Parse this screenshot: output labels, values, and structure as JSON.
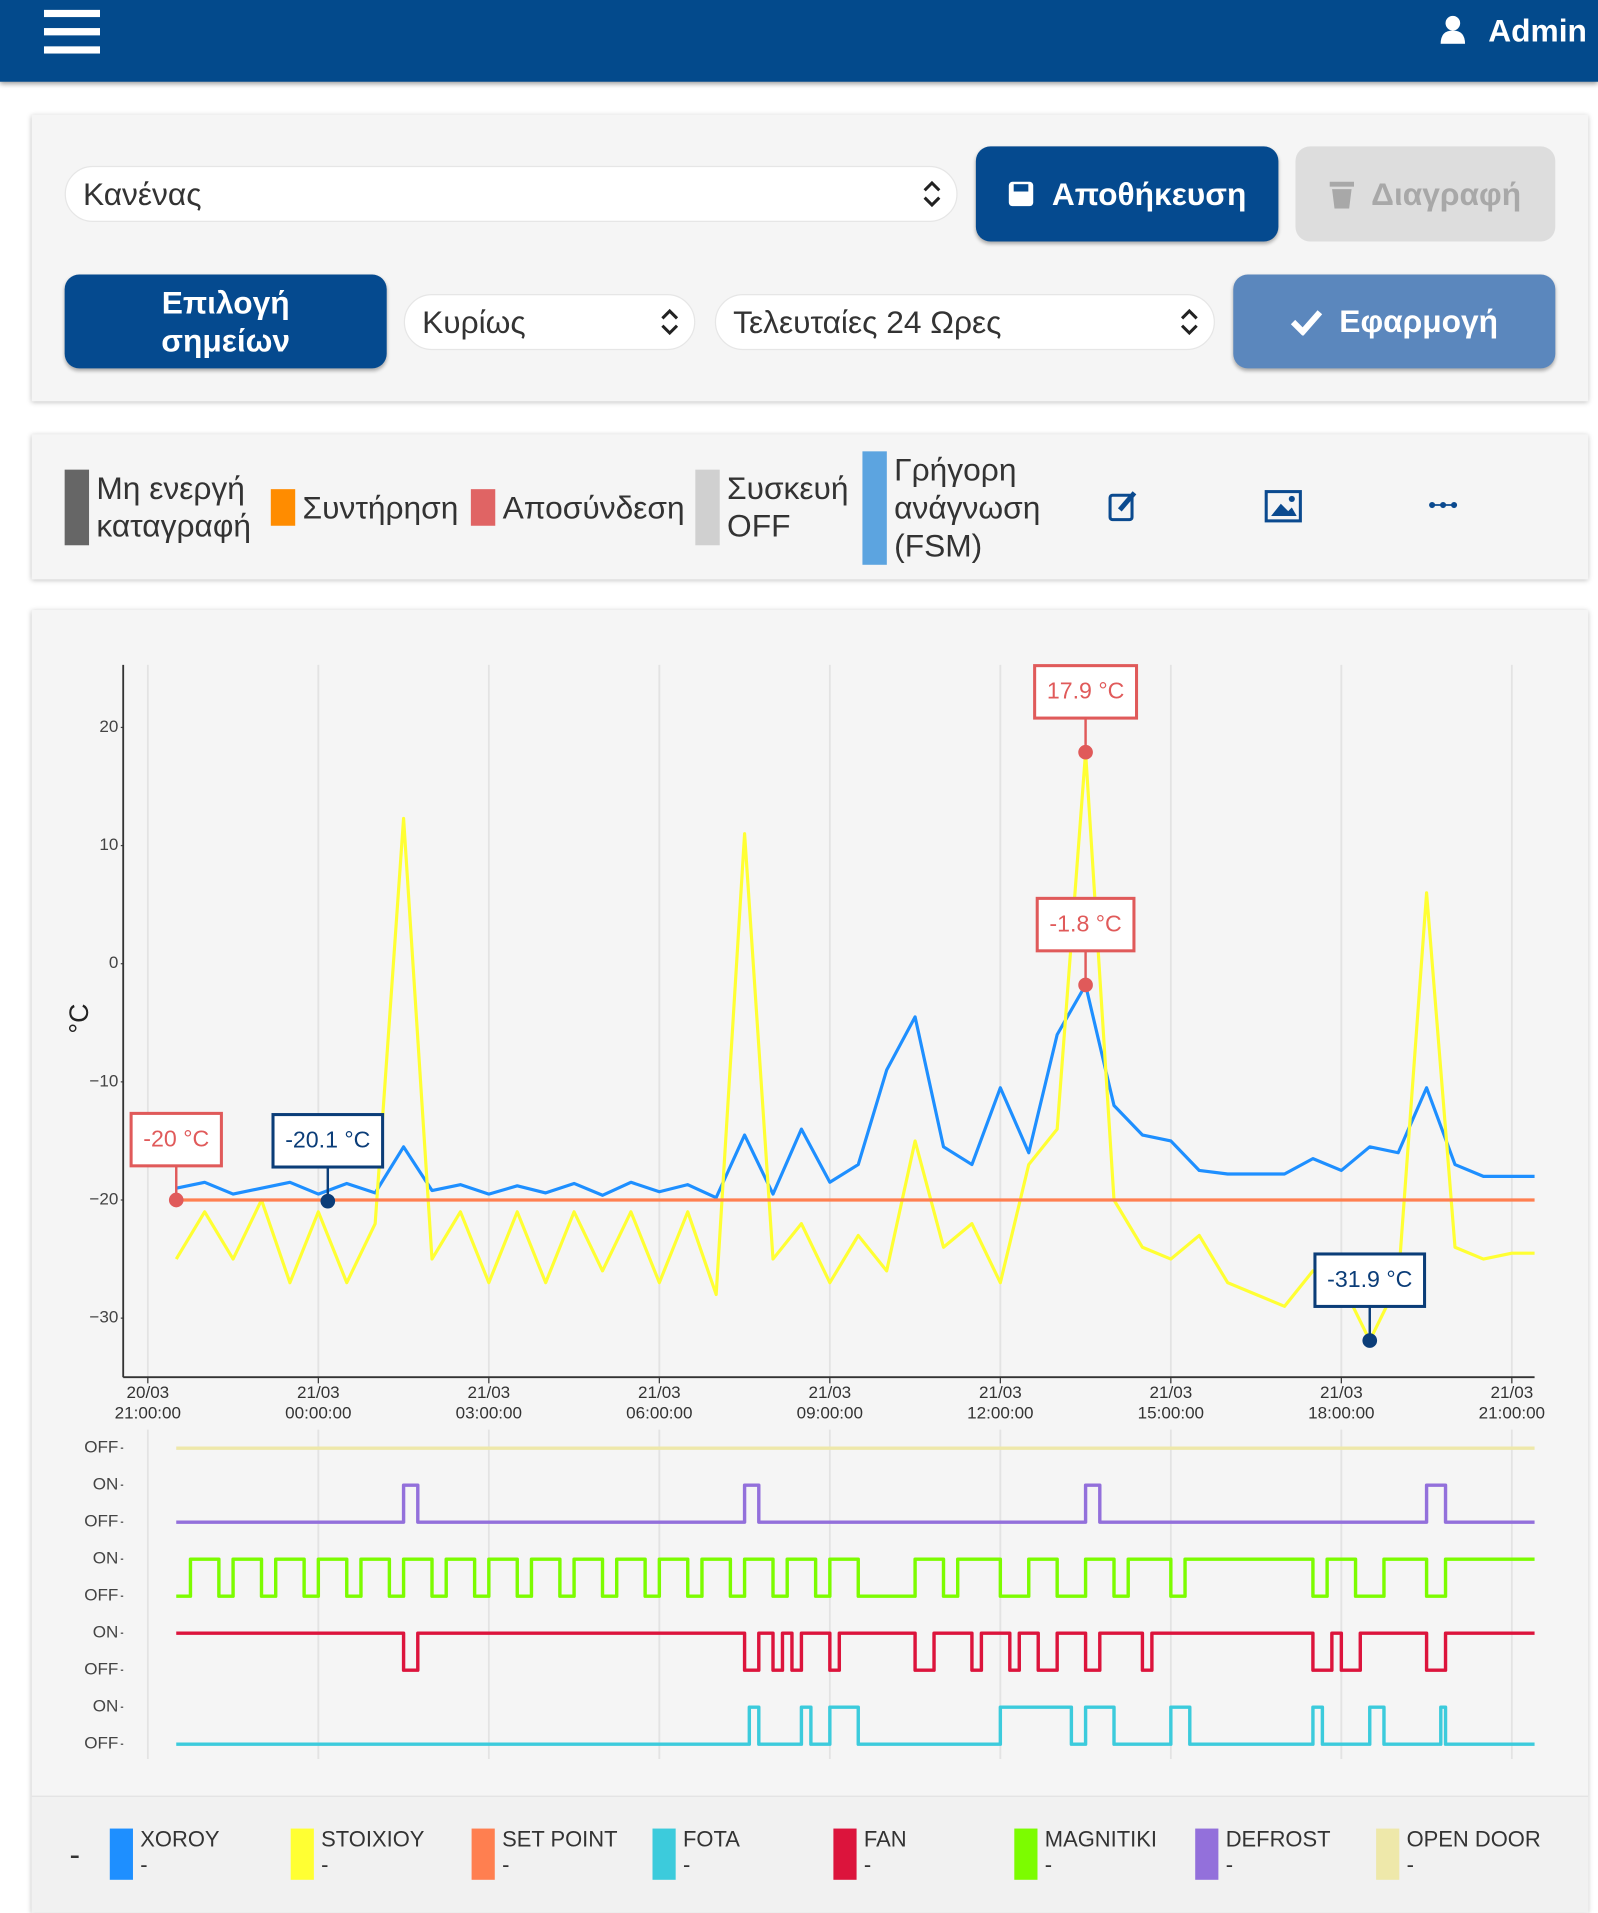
{
  "header": {
    "user": "Admin"
  },
  "toolbar": {
    "preset": "Κανένας",
    "save": "Αποθήκευση",
    "delete": "Διαγραφή",
    "points": "Επιλογή σημείων",
    "group": "Κυρίως",
    "range": "Τελευταίες 24 Ωρες",
    "apply": "Εφαρμογή"
  },
  "status_legend": [
    {
      "label": "Μη ενεργή καταγραφή",
      "color": "#666666"
    },
    {
      "label": "Συντήρηση",
      "color": "#ff8c00"
    },
    {
      "label": "Αποσύνδεση",
      "color": "#e06464"
    },
    {
      "label": "Συσκευή OFF",
      "color": "#d0d0d0"
    },
    {
      "label": "Γρήγορη ανάγνωση (FSM)",
      "color": "#5ca4e0"
    }
  ],
  "legend_label": "-",
  "chart_data": [
    {
      "type": "line",
      "y_label": "°C",
      "x": [
        "20/03 21:30:00",
        "20/03 22:00:00",
        "20/03 22:30:00",
        "20/03 23:00:00",
        "20/03 23:30:00",
        "21/03 00:00:00",
        "21/03 00:30:00",
        "21/03 01:00:00",
        "21/03 01:30:00",
        "21/03 02:00:00",
        "21/03 02:30:00",
        "21/03 03:00:00",
        "21/03 03:30:00",
        "21/03 04:00:00",
        "21/03 04:30:00",
        "21/03 05:00:00",
        "21/03 05:30:00",
        "21/03 06:00:00",
        "21/03 06:30:00",
        "21/03 07:00:00",
        "21/03 07:30:00",
        "21/03 08:00:00",
        "21/03 08:30:00",
        "21/03 09:00:00",
        "21/03 09:30:00",
        "21/03 10:00:00",
        "21/03 10:30:00",
        "21/03 11:00:00",
        "21/03 11:30:00",
        "21/03 12:00:00",
        "21/03 12:30:00",
        "21/03 13:00:00",
        "21/03 13:30:00",
        "21/03 14:00:00",
        "21/03 14:30:00",
        "21/03 15:00:00",
        "21/03 15:30:00",
        "21/03 16:00:00",
        "21/03 16:30:00",
        "21/03 17:00:00",
        "21/03 17:30:00",
        "21/03 18:00:00",
        "21/03 18:30:00",
        "21/03 19:00:00",
        "21/03 19:30:00",
        "21/03 20:00:00",
        "21/03 20:30:00",
        "21/03 21:00:00",
        "21/03 21:24:00"
      ],
      "series": [
        {
          "name": "XOROY",
          "color": "#1e8fff",
          "current": "-",
          "values": [
            -19,
            -18.5,
            -19.5,
            -19,
            -18.5,
            -19.5,
            -18.6,
            -19.4,
            -15.5,
            -19.2,
            -18.7,
            -19.5,
            -18.8,
            -19.4,
            -18.6,
            -19.6,
            -18.5,
            -19.3,
            -18.7,
            -19.8,
            -14.5,
            -19.5,
            -14,
            -18.5,
            -17,
            -9,
            -4.5,
            -15.5,
            -17,
            -10.5,
            -16,
            -6,
            -1.8,
            -12,
            -14.5,
            -15,
            -17.5,
            -17.8,
            -17.8,
            -17.8,
            -16.5,
            -17.5,
            -15.5,
            -16,
            -10.5,
            -17,
            -18,
            -18,
            -18
          ]
        },
        {
          "name": "STOIXIOY",
          "color": "#ffff33",
          "current": "-",
          "values": [
            -25,
            -21,
            -25,
            -20,
            -27,
            -21,
            -27,
            -22,
            12.3,
            -25,
            -21,
            -27,
            -21,
            -27,
            -21,
            -26,
            -21,
            -27,
            -21,
            -28,
            11,
            -25,
            -22,
            -27,
            -23,
            -26,
            -15,
            -24,
            -22,
            -27,
            -17,
            -14,
            17.9,
            -20,
            -24,
            -25,
            -23,
            -27,
            -28,
            -29,
            -26,
            -27,
            -31.9,
            -27,
            6,
            -24,
            -25,
            -24.5,
            -24.5
          ]
        },
        {
          "name": "SET POINT",
          "color": "#ff7f50",
          "current": "-",
          "x": [
            "20/03 21:30:00",
            "21/03 21:24:00"
          ],
          "values": [
            -20,
            -20
          ]
        }
      ],
      "annotations": [
        {
          "x": "20/03 21:30:00",
          "value": -20,
          "label": "-20 °C",
          "color": "#e05a5a"
        },
        {
          "x": "21/03 00:10:00",
          "value": -20.1,
          "label": "-20.1 °C",
          "color": "#0b3d78"
        },
        {
          "x": "21/03 13:30:00",
          "value": 17.9,
          "label": "17.9 °C",
          "color": "#e05a5a"
        },
        {
          "x": "21/03 13:30:00",
          "value": -1.8,
          "label": "-1.8 °C",
          "color": "#e05a5a"
        },
        {
          "x": "21/03 18:30:00",
          "value": -31.9,
          "label": "-31.9 °C",
          "color": "#0b3d78"
        }
      ],
      "xlim": [
        "20/03 20:34:00",
        "21/03 21:24:00"
      ],
      "xticks": [
        "20/03 21:00:00",
        "21/03 00:00:00",
        "21/03 03:00:00",
        "21/03 06:00:00",
        "21/03 09:00:00",
        "21/03 12:00:00",
        "21/03 15:00:00",
        "21/03 18:00:00",
        "21/03 21:00:00"
      ],
      "ylim": [
        -35,
        25.3
      ],
      "yticks": [
        20,
        10,
        0,
        {
          "value": -10,
          "label": "−10"
        },
        {
          "value": -20,
          "label": "−20"
        },
        {
          "value": -30,
          "label": "−30"
        }
      ],
      "grid": "x"
    },
    {
      "type": "step",
      "xlim": [
        "20/03 20:34:00",
        "21/03 21:24:00"
      ],
      "xticks": [
        "20/03 21:00:00",
        "21/03 00:00:00",
        "21/03 03:00:00",
        "21/03 06:00:00",
        "21/03 09:00:00",
        "21/03 12:00:00",
        "21/03 15:00:00",
        "21/03 18:00:00",
        "21/03 21:00:00"
      ],
      "ylim": [
        -0.4,
        8.5
      ],
      "yticks": [
        {
          "value": 8,
          "label": "OFF"
        },
        {
          "value": 7,
          "label": "ON"
        },
        {
          "value": 6,
          "label": "OFF"
        },
        {
          "value": 5,
          "label": "ON"
        },
        {
          "value": 4,
          "label": "OFF"
        },
        {
          "value": 3,
          "label": "ON"
        },
        {
          "value": 2,
          "label": "OFF"
        },
        {
          "value": 1,
          "label": "ON"
        },
        {
          "value": 0,
          "label": "OFF"
        }
      ],
      "grid": "x",
      "series": [
        {
          "name": "FOTA",
          "color": "#3ccbdc",
          "current": "-",
          "x": [
            "20/03 21:30:00",
            "21/03 07:35:00",
            "21/03 07:45:00",
            "21/03 08:30:00",
            "21/03 08:40:00",
            "21/03 09:00:00",
            "21/03 09:30:00",
            "21/03 12:00:00",
            "21/03 13:15:00",
            "21/03 13:30:00",
            "21/03 14:00:00",
            "21/03 15:00:00",
            "21/03 15:20:00",
            "21/03 17:30:00",
            "21/03 17:40:00",
            "21/03 18:30:00",
            "21/03 18:45:00",
            "21/03 19:45:00",
            "21/03 19:50:00",
            "21/03 21:24:00"
          ],
          "values": [
            0,
            1,
            0,
            1,
            0,
            1,
            0,
            1,
            0,
            1,
            0,
            1,
            0,
            1,
            0,
            1,
            0,
            1,
            0,
            0
          ]
        },
        {
          "name": "FAN",
          "color": "#dc143c",
          "current": "-",
          "x": [
            "20/03 21:30:00",
            "21/03 01:30:00",
            "21/03 01:45:00",
            "21/03 07:30:00",
            "21/03 07:45:00",
            "21/03 08:00:00",
            "21/03 08:10:00",
            "21/03 08:20:00",
            "21/03 08:30:00",
            "21/03 09:00:00",
            "21/03 09:10:00",
            "21/03 10:30:00",
            "21/03 10:50:00",
            "21/03 11:30:00",
            "21/03 11:40:00",
            "21/03 12:10:00",
            "21/03 12:20:00",
            "21/03 12:40:00",
            "21/03 13:00:00",
            "21/03 13:30:00",
            "21/03 13:45:00",
            "21/03 14:30:00",
            "21/03 14:40:00",
            "21/03 17:30:00",
            "21/03 17:50:00",
            "21/03 18:00:00",
            "21/03 18:20:00",
            "21/03 19:30:00",
            "21/03 19:50:00",
            "21/03 21:24:00"
          ],
          "values": [
            3,
            2,
            3,
            2,
            3,
            2,
            3,
            2,
            3,
            2,
            3,
            2,
            3,
            2,
            3,
            2,
            3,
            2,
            3,
            2,
            3,
            2,
            3,
            2,
            3,
            2,
            3,
            2,
            3,
            3
          ]
        },
        {
          "name": "MAGNITIKI",
          "color": "#7cfc00",
          "current": "-",
          "x": [
            "20/03 21:30:00",
            "20/03 21:45:00",
            "20/03 22:15:00",
            "20/03 22:30:00",
            "20/03 23:00:00",
            "20/03 23:15:00",
            "20/03 23:45:00",
            "21/03 00:00:00",
            "21/03 00:30:00",
            "21/03 00:45:00",
            "21/03 01:15:00",
            "21/03 01:30:00",
            "21/03 02:00:00",
            "21/03 02:15:00",
            "21/03 02:45:00",
            "21/03 03:00:00",
            "21/03 03:30:00",
            "21/03 03:45:00",
            "21/03 04:15:00",
            "21/03 04:30:00",
            "21/03 05:00:00",
            "21/03 05:15:00",
            "21/03 05:45:00",
            "21/03 06:00:00",
            "21/03 06:30:00",
            "21/03 06:45:00",
            "21/03 07:15:00",
            "21/03 07:30:00",
            "21/03 08:00:00",
            "21/03 08:15:00",
            "21/03 08:45:00",
            "21/03 09:00:00",
            "21/03 09:30:00",
            "21/03 10:30:00",
            "21/03 11:00:00",
            "21/03 11:15:00",
            "21/03 12:00:00",
            "21/03 12:30:00",
            "21/03 13:00:00",
            "21/03 13:30:00",
            "21/03 14:00:00",
            "21/03 14:15:00",
            "21/03 15:00:00",
            "21/03 15:15:00",
            "21/03 17:30:00",
            "21/03 17:45:00",
            "21/03 18:15:00",
            "21/03 18:45:00",
            "21/03 19:30:00",
            "21/03 19:50:00",
            "21/03 21:24:00"
          ],
          "values": [
            4,
            5,
            4,
            5,
            4,
            5,
            4,
            5,
            4,
            5,
            4,
            5,
            4,
            5,
            4,
            5,
            4,
            5,
            4,
            5,
            4,
            5,
            4,
            5,
            4,
            5,
            4,
            5,
            4,
            5,
            4,
            5,
            4,
            5,
            4,
            5,
            4,
            5,
            4,
            5,
            4,
            5,
            4,
            5,
            4,
            5,
            4,
            5,
            4,
            5,
            5
          ]
        },
        {
          "name": "DEFROST",
          "color": "#9370db",
          "current": "-",
          "x": [
            "20/03 21:30:00",
            "21/03 01:30:00",
            "21/03 01:45:00",
            "21/03 07:30:00",
            "21/03 07:45:00",
            "21/03 13:30:00",
            "21/03 13:45:00",
            "21/03 19:30:00",
            "21/03 19:50:00",
            "21/03 21:24:00"
          ],
          "values": [
            6,
            7,
            6,
            7,
            6,
            7,
            6,
            7,
            6,
            6
          ]
        },
        {
          "name": "OPEN DOOR",
          "color": "#eee8aa",
          "current": "-",
          "x": [
            "20/03 21:30:00",
            "21/03 21:24:00"
          ],
          "values": [
            8,
            8
          ]
        }
      ]
    }
  ]
}
